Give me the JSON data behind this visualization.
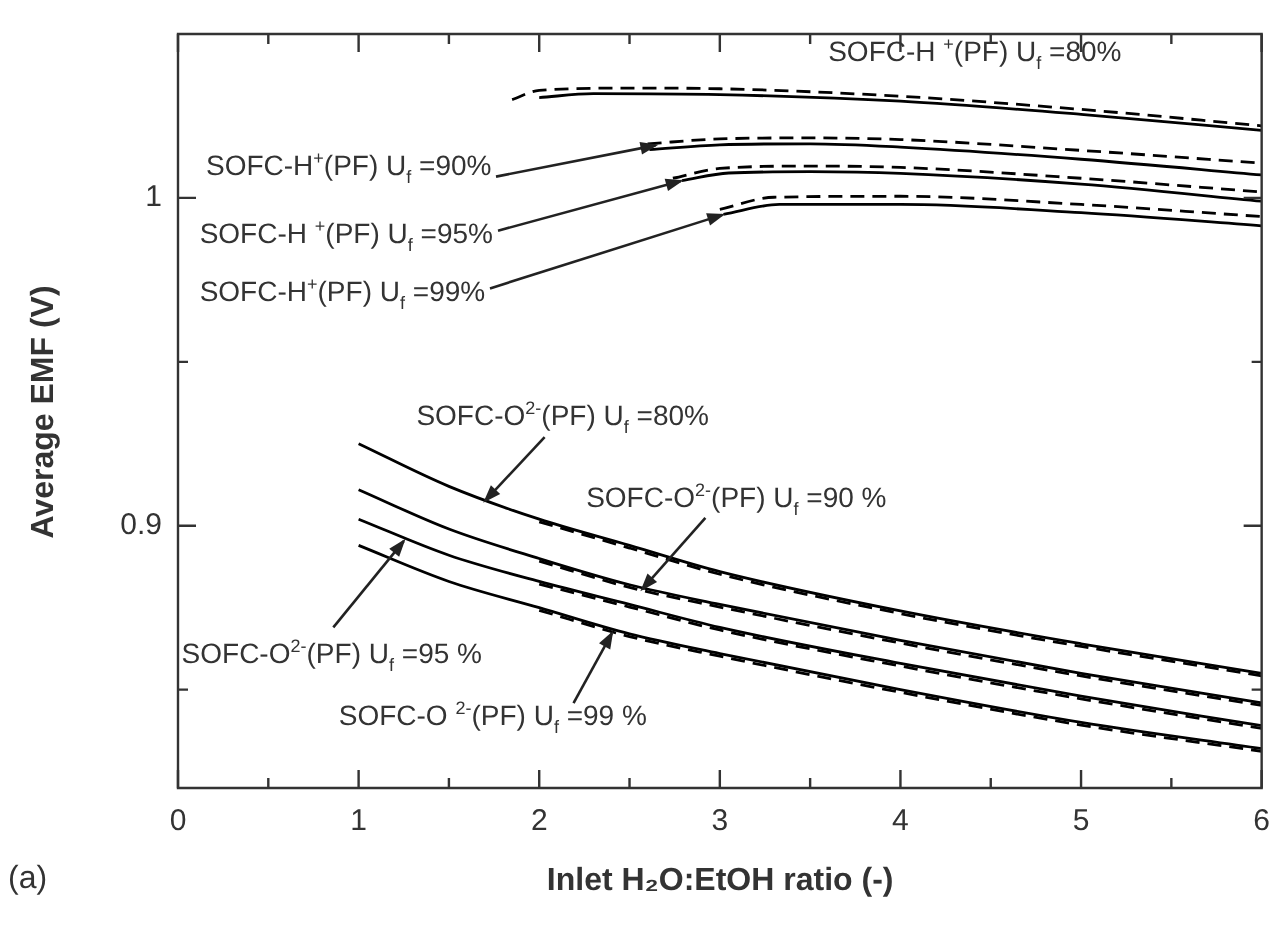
{
  "chart_data": {
    "type": "line",
    "xlabel": "Inlet H₂O:EtOH ratio (-)",
    "ylabel": "Average EMF (V)",
    "xlim": [
      0,
      6
    ],
    "ylim": [
      0.82,
      1.05
    ],
    "xticks": [
      0,
      {
        "value": 0.5,
        "label": null
      },
      1,
      {
        "value": 1.5,
        "label": null
      },
      2,
      {
        "value": 2.5,
        "label": null
      },
      3,
      {
        "value": 3.5,
        "label": null
      },
      4,
      {
        "value": 4.5,
        "label": null
      },
      5,
      {
        "value": 5.5,
        "label": null
      },
      6
    ],
    "yticks": [
      {
        "value": 0.85,
        "label": null
      },
      0.9,
      {
        "value": 0.95,
        "label": null
      },
      1
    ],
    "grid": false,
    "legend": false,
    "marker": "none",
    "annotations": [
      "(a)",
      "SOFC-H $^{+}$(PF) U$_{f}$ =80%",
      {
        "text": "SOFC-H$^{+}$(PF) U$_{f}$ =90%",
        "x": 2.66,
        "y": 1.0162
      },
      {
        "text": "SOFC-H $^{+}$(PF) U$_{f}$ =95%",
        "x": 2.8,
        "y": 1.0054
      },
      {
        "text": "SOFC-H$^{+}$(PF) U$_{f}$ =99%",
        "x": 3.03,
        "y": 0.9951
      },
      {
        "text": "SOFC-O$^{2-}$(PF) U$_{f}$   =80%",
        "x": 1.69,
        "y": 0.907
      },
      {
        "text": "SOFC-O$^{2-}$(PF) U$_{f}$ =90 %",
        "x": 2.56,
        "y": 0.88
      },
      {
        "text": "SOFC-O$^{2-}$(PF) U$_{f}$ =95 %",
        "x": 1.26,
        "y": 0.896
      },
      {
        "text": "SOFC-O $^{2-}$(PF) U$_{f}$ =99 %",
        "x": 2.41,
        "y": 0.868
      }
    ],
    "series": [
      {
        "color": "#000000",
        "line_style": "solid",
        "x": [
          2.0,
          2.3,
          3,
          4,
          5,
          6
        ],
        "values": [
          1.0306,
          1.0318,
          1.0315,
          1.0295,
          1.0255,
          1.0206
        ]
      },
      {
        "color": "#000000",
        "line_style": "dashed",
        "x": [
          1.85,
          2.0,
          2.5,
          3,
          4,
          5,
          6
        ],
        "values": [
          1.03,
          1.0328,
          1.0335,
          1.0333,
          1.031,
          1.027,
          1.022
        ]
      },
      {
        "color": "#000000",
        "line_style": "solid",
        "x": [
          2.61,
          3.0,
          3.5,
          4,
          5,
          6
        ],
        "values": [
          1.0147,
          1.0162,
          1.0165,
          1.0155,
          1.0118,
          1.007
        ]
      },
      {
        "color": "#000000",
        "line_style": "dashed",
        "x": [
          2.6,
          3.0,
          3.5,
          4,
          5,
          6
        ],
        "values": [
          1.0165,
          1.018,
          1.0183,
          1.0178,
          1.0145,
          1.0106
        ]
      },
      {
        "color": "#000000",
        "line_style": "solid",
        "x": [
          2.79,
          3.05,
          3.5,
          4,
          5,
          6
        ],
        "values": [
          1.0053,
          1.0076,
          1.008,
          1.0075,
          1.0042,
          0.999
        ]
      },
      {
        "color": "#000000",
        "line_style": "dashed",
        "x": [
          2.74,
          3.0,
          3.5,
          4,
          5,
          6
        ],
        "values": [
          1.006,
          1.009,
          1.0097,
          1.0093,
          1.006,
          1.0018
        ]
      },
      {
        "color": "#000000",
        "line_style": "solid",
        "x": [
          3.02,
          3.33,
          4,
          5,
          6
        ],
        "values": [
          0.995,
          0.998,
          0.998,
          0.9955,
          0.9915
        ]
      },
      {
        "color": "#000000",
        "line_style": "dashed",
        "x": [
          3.0,
          3.3,
          4,
          5,
          6
        ],
        "values": [
          0.9965,
          1.0002,
          1.0005,
          0.998,
          0.9943
        ]
      },
      {
        "color": "#000000",
        "line_style": "solid",
        "x": [
          1,
          1.5,
          2,
          2.5,
          3,
          4,
          5,
          6
        ],
        "values": [
          0.925,
          0.912,
          0.902,
          0.894,
          0.886,
          0.874,
          0.864,
          0.855
        ]
      },
      {
        "color": "#000000",
        "line_style": "dashed",
        "x": [
          2,
          2.5,
          3,
          4,
          5,
          6
        ],
        "values": [
          0.9012,
          0.8932,
          0.8852,
          0.8732,
          0.8632,
          0.8542
        ]
      },
      {
        "color": "#000000",
        "line_style": "solid",
        "x": [
          1,
          1.5,
          2,
          2.5,
          3,
          4,
          5,
          6
        ],
        "values": [
          0.911,
          0.899,
          0.89,
          0.882,
          0.876,
          0.865,
          0.855,
          0.846
        ]
      },
      {
        "color": "#000000",
        "line_style": "dashed",
        "x": [
          2,
          2.5,
          3,
          4,
          5,
          6
        ],
        "values": [
          0.8892,
          0.8812,
          0.8752,
          0.8642,
          0.8542,
          0.8452
        ]
      },
      {
        "color": "#000000",
        "line_style": "solid",
        "x": [
          1,
          1.5,
          2,
          2.5,
          3,
          4,
          5,
          6
        ],
        "values": [
          0.902,
          0.891,
          0.883,
          0.876,
          0.869,
          0.858,
          0.848,
          0.839
        ]
      },
      {
        "color": "#000000",
        "line_style": "dashed",
        "x": [
          2,
          2.5,
          3,
          4,
          5,
          6
        ],
        "values": [
          0.8822,
          0.8752,
          0.8682,
          0.8572,
          0.8472,
          0.8382
        ]
      },
      {
        "color": "#000000",
        "line_style": "solid",
        "x": [
          1,
          1.5,
          2,
          2.5,
          3,
          4,
          5,
          6
        ],
        "values": [
          0.894,
          0.883,
          0.875,
          0.867,
          0.861,
          0.85,
          0.84,
          0.832
        ]
      },
      {
        "color": "#000000",
        "line_style": "dashed",
        "x": [
          2,
          2.5,
          3,
          4,
          5,
          6
        ],
        "values": [
          0.8742,
          0.8662,
          0.8602,
          0.8492,
          0.8392,
          0.8312
        ]
      }
    ]
  }
}
